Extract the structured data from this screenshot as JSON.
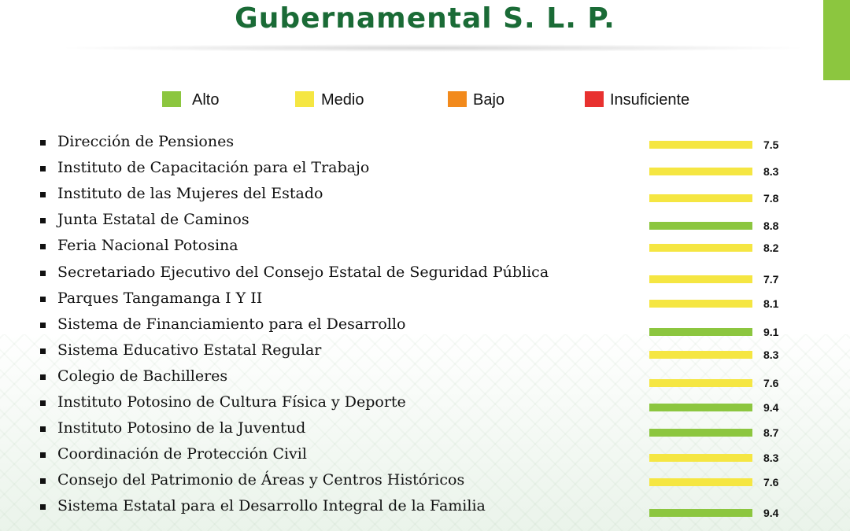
{
  "title": "Gubernamental S. L. P.",
  "colors": {
    "alto": "#8cc63f",
    "medio": "#f5e642",
    "bajo": "#f28a1c",
    "insuficiente": "#e8312f",
    "title": "#1a6b36"
  },
  "legend": [
    {
      "label": "Alto",
      "color": "#8cc63f"
    },
    {
      "label": "Medio",
      "color": "#f5e642"
    },
    {
      "label": "Bajo",
      "color": "#f28a1c"
    },
    {
      "label": "Insuficiente",
      "color": "#e8312f"
    }
  ],
  "chart_data": {
    "type": "bar",
    "orientation": "horizontal",
    "title": "Gubernamental S. L. P.",
    "xlabel": "",
    "ylabel": "",
    "grid": false,
    "legend_position": "top",
    "categories": [
      "Dirección de Pensiones",
      "Instituto de Capacitación para el Trabajo",
      "Instituto de las Mujeres del Estado",
      "Junta Estatal de Caminos",
      "Feria Nacional Potosina",
      "Secretariado Ejecutivo del Consejo Estatal de Seguridad Pública",
      "Parques Tangamanga I Y II",
      "Sistema de Financiamiento para el Desarrollo",
      "Sistema Educativo Estatal Regular",
      "Colegio de Bachilleres",
      "Instituto Potosino de Cultura Física y Deporte",
      "Instituto Potosino de la Juventud",
      "Coordinación de Protección Civil",
      "Consejo del Patrimonio de Áreas y Centros Históricos",
      "Sistema Estatal para el Desarrollo Integral de la Familia"
    ],
    "values": [
      7.5,
      8.3,
      7.8,
      8.8,
      8.2,
      7.7,
      8.1,
      9.1,
      8.3,
      7.6,
      9.4,
      8.7,
      8.3,
      7.6,
      9.4
    ],
    "levels": [
      "Medio",
      "Medio",
      "Medio",
      "Alto",
      "Medio",
      "Medio",
      "Medio",
      "Alto",
      "Medio",
      "Medio",
      "Alto",
      "Alto",
      "Medio",
      "Medio",
      "Alto"
    ],
    "value_labels": [
      "7.5",
      "8.3",
      "7.8",
      "8.8",
      "8.2",
      "7.7",
      "8.1",
      "9.1",
      "8.3",
      "7.6",
      "9.4",
      "8.7",
      "8.3",
      "7.6",
      "9.4"
    ]
  }
}
